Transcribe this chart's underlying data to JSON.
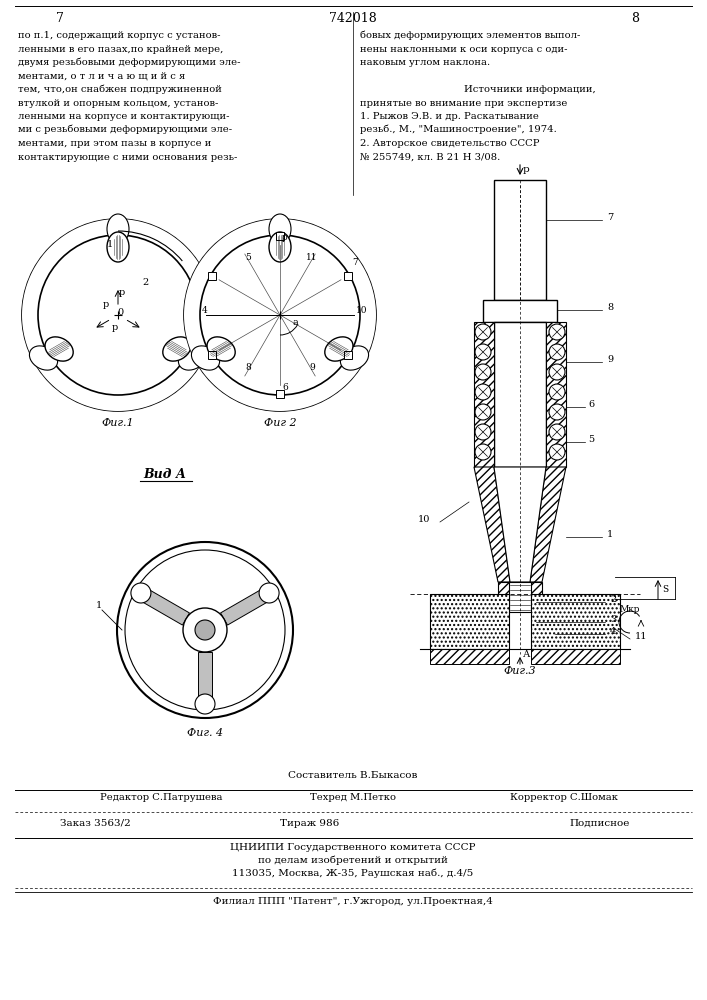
{
  "page_number_left": "7",
  "page_number_center": "742018",
  "page_number_right": "8",
  "left_column_text": [
    "по п.1, содержащий корпус с установ-",
    "ленными в его пазах,по крайней мере,",
    "двумя резьбовыми деформирующими эле-",
    "ментами, о т л и ч а ю щ и й с я",
    "тем, что,он снабжен подпружиненной",
    "втулкой и опорным кольцом, установ-",
    "ленными на корпусе и контактирующи-",
    "ми с резьбовыми деформирующими эле-",
    "ментами, при этом пазы в корпусе и",
    "контактирующие с ними основания резь-"
  ],
  "right_column_text_lines": [
    [
      "бовых деформирующих элементов выпол-",
      false
    ],
    [
      "нены наклонными к оси корпуса с оди-",
      false
    ],
    [
      "наковым углом наклона.",
      false
    ],
    [
      "",
      false
    ],
    [
      "Источники информации,",
      true
    ],
    [
      "принятые во внимание при экспертизе",
      false
    ],
    [
      "1. Рыжов Э.В. и др. Раскатывание",
      false
    ],
    [
      "резьб., М., \"Машиностроение\", 1974.",
      false
    ],
    [
      "2. Авторское свидетельство СССР",
      false
    ],
    [
      "№ 255749, кл. В 21 Н 3/08.",
      false
    ]
  ],
  "fig1_label": "Фиг.1",
  "fig2_label": "Фиг 2",
  "fig3_label": "Фиг.3",
  "fig4_label": "Фиг. 4",
  "vid_a_label": "Вид А",
  "composer_line": "Составитель В.Быкасов",
  "editor_label": "Редактор С.Патрушева",
  "techred_label": "Техред М.Петко",
  "corrector_label": "Корректор С.Шомак",
  "order_label": "Заказ 3563/2",
  "tirazh_label": "Тираж 986",
  "podpisnoe_label": "Подписное",
  "org_line1": "ЦНИИПИ Государственного комитета СССР",
  "org_line2": "по делам изобретений и открытий",
  "org_line3": "113035, Москва, Ж-35, Раушская наб., д.4/5",
  "branch_line": "Филиал ППП \"Патент\", г.Ужгород, ул.Проектная,4",
  "bg_color": "#ffffff",
  "text_color": "#000000"
}
